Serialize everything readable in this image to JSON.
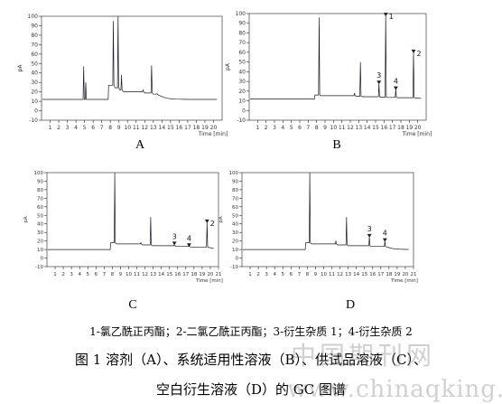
{
  "chart_data": [
    {
      "type": "line",
      "panel": "A",
      "ylabel": "pA",
      "xlabel": "Time [min]",
      "xlim": [
        0,
        21
      ],
      "ylim": [
        -10,
        100
      ],
      "xticks": [
        1,
        2,
        3,
        4,
        5,
        6,
        7,
        8,
        9,
        10,
        11,
        12,
        13,
        14,
        15,
        16,
        17,
        18,
        19,
        20
      ],
      "yticks": [
        -10,
        0,
        10,
        20,
        30,
        40,
        50,
        60,
        70,
        80,
        90,
        100
      ],
      "baseline": 12,
      "events": [
        {
          "type": "spike",
          "t": 4.9,
          "h": 47
        },
        {
          "type": "spike",
          "t": 5.15,
          "h": 30
        },
        {
          "type": "step",
          "t": 7.8,
          "h": 27
        },
        {
          "type": "spike",
          "t": 8.35,
          "h": 95
        },
        {
          "type": "spike",
          "t": 8.9,
          "h": 100
        },
        {
          "type": "spike",
          "t": 9.3,
          "h": 38
        },
        {
          "type": "spike",
          "t": 11.8,
          "h": 22
        },
        {
          "type": "spike",
          "t": 12.8,
          "h": 48
        },
        {
          "type": "spike",
          "t": 13.4,
          "h": 18
        }
      ],
      "peak_labels": []
    },
    {
      "type": "line",
      "panel": "B",
      "ylabel": "pA",
      "xlabel": "Time [min]",
      "xlim": [
        0,
        21
      ],
      "ylim": [
        -10,
        100
      ],
      "xticks": [
        1,
        2,
        3,
        4,
        5,
        6,
        7,
        8,
        9,
        10,
        11,
        12,
        13,
        14,
        15,
        16,
        17,
        18,
        19,
        20
      ],
      "yticks": [
        -10,
        0,
        10,
        20,
        30,
        40,
        50,
        60,
        70,
        80,
        90,
        100
      ],
      "baseline": 12,
      "events": [
        {
          "type": "step",
          "t": 7.8,
          "h": 16
        },
        {
          "type": "spike",
          "t": 8.3,
          "h": 96
        },
        {
          "type": "spike",
          "t": 12.5,
          "h": 18
        },
        {
          "type": "spike",
          "t": 13.2,
          "h": 50
        },
        {
          "type": "spike",
          "t": 15.4,
          "h": 28
        },
        {
          "type": "spike",
          "t": 16.2,
          "h": 98
        },
        {
          "type": "spike",
          "t": 17.4,
          "h": 22
        },
        {
          "type": "spike",
          "t": 19.5,
          "h": 60
        }
      ],
      "peak_labels": [
        {
          "label": "1",
          "t": 16.2,
          "h": 98,
          "marker": true
        },
        {
          "label": "2",
          "t": 19.5,
          "h": 60,
          "marker": true
        },
        {
          "label": "3",
          "t": 15.4,
          "h": 28,
          "marker": true
        },
        {
          "label": "4",
          "t": 17.4,
          "h": 22,
          "marker": true
        }
      ]
    },
    {
      "type": "line",
      "panel": "C",
      "ylabel": "pA",
      "xlabel": "Time [min]",
      "xlim": [
        0,
        21
      ],
      "ylim": [
        -10,
        100
      ],
      "xticks": [
        1,
        2,
        3,
        4,
        5,
        6,
        7,
        8,
        9,
        10,
        11,
        12,
        13,
        14,
        15,
        16,
        17,
        18,
        19,
        20,
        21
      ],
      "yticks": [
        -10,
        0,
        10,
        20,
        30,
        40,
        50,
        60,
        70,
        80,
        90,
        100
      ],
      "baseline": 10,
      "events": [
        {
          "type": "step",
          "t": 7.8,
          "h": 18
        },
        {
          "type": "spike",
          "t": 8.3,
          "h": 100
        },
        {
          "type": "spike",
          "t": 11.5,
          "h": 18
        },
        {
          "type": "spike",
          "t": 12.7,
          "h": 48
        },
        {
          "type": "spike",
          "t": 15.6,
          "h": 16
        },
        {
          "type": "spike",
          "t": 17.4,
          "h": 14
        },
        {
          "type": "spike",
          "t": 19.6,
          "h": 42
        }
      ],
      "peak_labels": [
        {
          "label": "2",
          "t": 19.6,
          "h": 42,
          "marker": true
        },
        {
          "label": "3",
          "t": 15.6,
          "h": 16,
          "marker": true
        },
        {
          "label": "4",
          "t": 17.4,
          "h": 14,
          "marker": true
        }
      ]
    },
    {
      "type": "line",
      "panel": "D",
      "ylabel": "pA",
      "xlabel": "Time [min]",
      "xlim": [
        0,
        21
      ],
      "ylim": [
        -10,
        100
      ],
      "xticks": [
        1,
        2,
        3,
        4,
        5,
        6,
        7,
        8,
        9,
        10,
        11,
        12,
        13,
        14,
        15,
        16,
        17,
        18,
        19,
        20,
        21
      ],
      "yticks": [
        -10,
        0,
        10,
        20,
        30,
        40,
        50,
        60,
        70,
        80,
        90,
        100
      ],
      "baseline": 10,
      "events": [
        {
          "type": "step",
          "t": 7.8,
          "h": 18
        },
        {
          "type": "spike",
          "t": 8.3,
          "h": 100
        },
        {
          "type": "spike",
          "t": 11.5,
          "h": 20
        },
        {
          "type": "spike",
          "t": 12.8,
          "h": 48
        },
        {
          "type": "spike",
          "t": 15.6,
          "h": 25
        },
        {
          "type": "spike",
          "t": 17.5,
          "h": 20
        }
      ],
      "peak_labels": [
        {
          "label": "3",
          "t": 15.6,
          "h": 25,
          "marker": true
        },
        {
          "label": "4",
          "t": 17.5,
          "h": 20,
          "marker": true
        }
      ]
    }
  ],
  "panel_labels": [
    "A",
    "B",
    "C",
    "D"
  ],
  "legend_text": "1-氯乙酰正丙酯；2-二氯乙酰正丙酯；3-衍生杂质 1；4-衍生杂质 2",
  "caption_line1": "图 1  溶剂（A）、系统适用性溶液（B）、供试品溶液（C）、",
  "caption_line2": "空白衍生溶液（D）的 GC 图谱",
  "watermark_cn": "中国期刊网",
  "watermark_url": "www.chinaqking.com",
  "colors": {
    "trace": "#1a1a2a",
    "axis": "#222222"
  }
}
